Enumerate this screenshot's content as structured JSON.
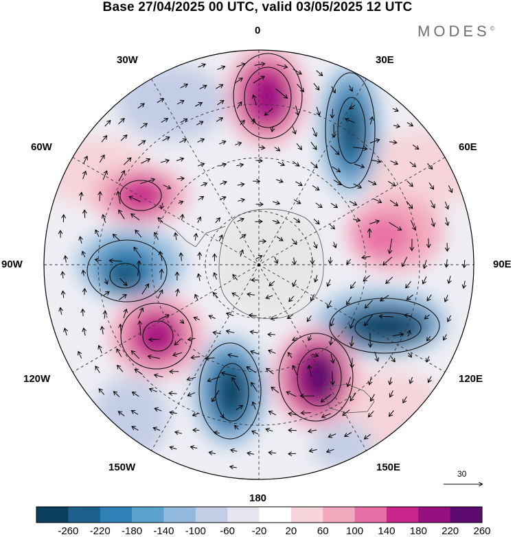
{
  "title": "Base 27/04/2025 00 UTC, valid 03/05/2025 12 UTC",
  "brand": "MODES",
  "brand_mark": "©",
  "longitudes": {
    "lon_0": "0",
    "lon_30e": "30E",
    "lon_60e": "60E",
    "lon_90e": "90E",
    "lon_120e": "120E",
    "lon_150e": "150E",
    "lon_180": "180",
    "lon_150w": "150W",
    "lon_120w": "120W",
    "lon_90w": "90W",
    "lon_60w": "60W",
    "lon_30w": "30W"
  },
  "reference_vector": {
    "value": "30"
  },
  "colorbar": {
    "labels": [
      "-260",
      "-220",
      "-180",
      "-140",
      "-100",
      "-60",
      "-20",
      "20",
      "60",
      "100",
      "140",
      "180",
      "220",
      "260"
    ],
    "colors": [
      "#0b3d5c",
      "#1b5f8a",
      "#2f80b4",
      "#5aa3cf",
      "#93bbdd",
      "#c3cde6",
      "#e6e5f1",
      "#ffffff",
      "#f6d4d9",
      "#f3a9bd",
      "#e86fa6",
      "#c9268c",
      "#96107f",
      "#5c0a6d"
    ]
  },
  "map_colors": {
    "land": "#e6e6e6",
    "coast": "#555555",
    "grid": "#333333",
    "contour": "#111111"
  }
}
